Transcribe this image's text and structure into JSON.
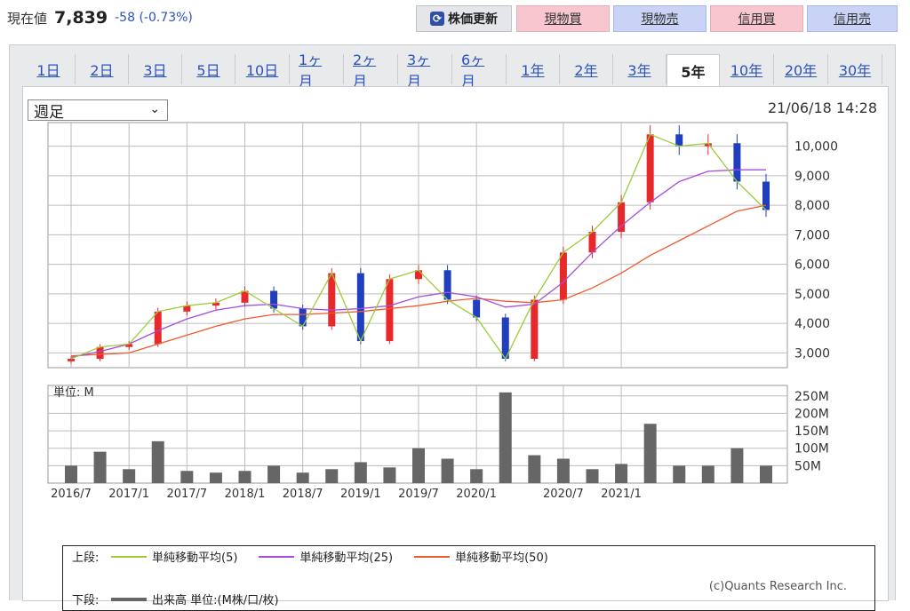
{
  "quote": {
    "label": "現在値",
    "price": "7,839",
    "change": "-58 (-0.73%)"
  },
  "buttons": {
    "refresh": "株価更新",
    "spot_buy": "現物買",
    "spot_sell": "現物売",
    "margin_buy": "信用買",
    "margin_sell": "信用売"
  },
  "tabs": [
    "1日",
    "2日",
    "3日",
    "5日",
    "10日",
    "1ヶ月",
    "2ヶ月",
    "3ヶ月",
    "6ヶ月",
    "1年",
    "2年",
    "3年",
    "5年",
    "10年",
    "20年",
    "30年"
  ],
  "active_tab": "5年",
  "period_select": "週足",
  "timestamp": "21/06/18 14:28",
  "volume_unit": "単位: M",
  "legend": {
    "upper_tag": "上段:",
    "lower_tag": "下段:",
    "ma5": "単純移動平均(5)",
    "ma25": "単純移動平均(25)",
    "ma50": "単純移動平均(50)",
    "volume": "出来高 単位:(M株/口/枚)"
  },
  "credit": "(c)Quants Research Inc.",
  "colors": {
    "up": "#e8282b",
    "down": "#1f3fbf",
    "ma5": "#9ccc3a",
    "ma25": "#a64cdb",
    "ma50": "#ef5b2f",
    "volume": "#666666",
    "grid": "#bdbdbd"
  },
  "chart_data": {
    "type": "candlestick",
    "x": [
      "2016/7",
      "2016/10",
      "2017/1",
      "2017/4",
      "2017/7",
      "2017/10",
      "2018/1",
      "2018/4",
      "2018/7",
      "2018/10",
      "2019/1",
      "2019/4",
      "2019/7",
      "2019/10",
      "2020/1",
      "2020/3",
      "2020/4",
      "2020/7",
      "2020/10",
      "2021/1",
      "2021/2",
      "2021/3",
      "2021/4",
      "2021/5",
      "2021/6"
    ],
    "close": [
      2800,
      3200,
      3300,
      4400,
      4600,
      4700,
      5100,
      4500,
      3900,
      5700,
      3400,
      5500,
      5800,
      4800,
      4200,
      2800,
      4800,
      6400,
      7100,
      8100,
      10400,
      10000,
      10100,
      8800,
      7839
    ],
    "ma25": [
      2850,
      3050,
      3300,
      3750,
      4150,
      4450,
      4600,
      4650,
      4500,
      4450,
      4500,
      4600,
      4900,
      5050,
      4900,
      4550,
      4650,
      5400,
      6400,
      7300,
      8100,
      8800,
      9150,
      9200,
      9200
    ],
    "ma50": [
      2900,
      2950,
      3000,
      3300,
      3600,
      3900,
      4150,
      4300,
      4300,
      4350,
      4400,
      4500,
      4600,
      4750,
      4850,
      4750,
      4700,
      4800,
      5200,
      5700,
      6300,
      6800,
      7300,
      7800,
      8000
    ],
    "volume_m": [
      50,
      90,
      40,
      120,
      35,
      30,
      35,
      50,
      30,
      40,
      60,
      45,
      100,
      70,
      40,
      260,
      80,
      70,
      40,
      55,
      170,
      50,
      50,
      100,
      50
    ],
    "x_ticks": [
      "2016/7",
      "2017/1",
      "2017/7",
      "2018/1",
      "2018/7",
      "2019/1",
      "2019/7",
      "2020/1",
      "2020/7",
      "2021/1"
    ],
    "y_ticks": [
      "3,000",
      "4,000",
      "5,000",
      "6,000",
      "7,000",
      "8,000",
      "9,000",
      "10,000"
    ],
    "y_range": [
      2500,
      10800
    ],
    "vol_ticks": [
      "50M",
      "100M",
      "150M",
      "200M",
      "250M"
    ],
    "vol_range": [
      0,
      280
    ]
  }
}
